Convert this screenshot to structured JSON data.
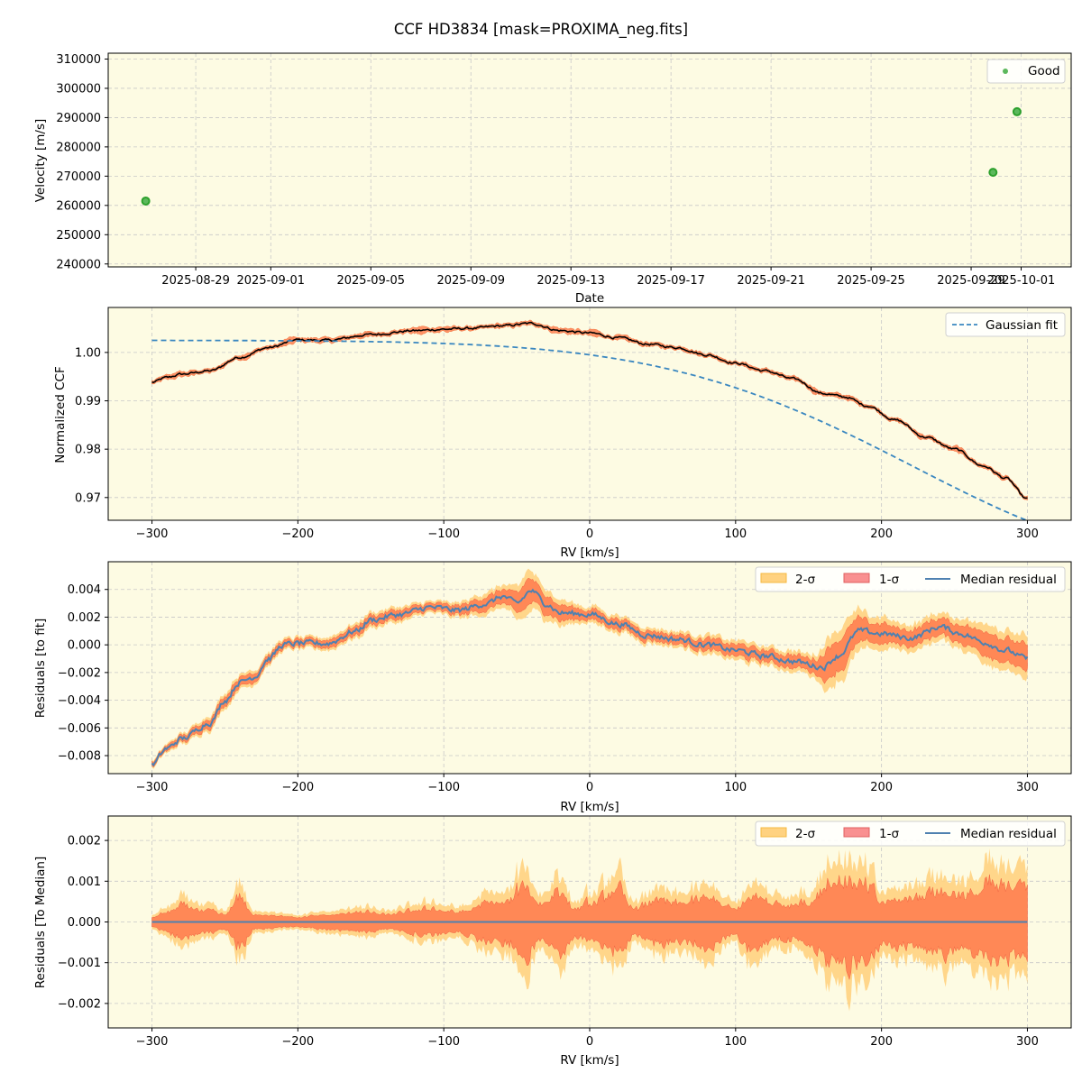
{
  "figure": {
    "title": "CCF HD3834 [mask=PROXIMA_neg.fits]",
    "background": "#ffffff",
    "axes_face": "#fdfbe3",
    "grid_color": "#c8c8c8"
  },
  "chart_data": [
    {
      "id": "velocity",
      "type": "scatter",
      "xlabel": "Date",
      "ylabel": "Velocity [m/s]",
      "x_type": "date",
      "xlim": [
        "2025-08-25T12:00",
        "2025-10-03T00:00"
      ],
      "ylim": [
        239000,
        312000
      ],
      "xticks": [
        "2025-08-29",
        "2025-09-01",
        "2025-09-05",
        "2025-09-09",
        "2025-09-13",
        "2025-09-17",
        "2025-09-21",
        "2025-09-25",
        "2025-09-29",
        "2025-10-01"
      ],
      "yticks": [
        240000,
        250000,
        260000,
        270000,
        280000,
        290000,
        300000,
        310000
      ],
      "legend": {
        "position": "top-right",
        "entries": [
          {
            "label": "Good",
            "marker": "dot",
            "color": "#5cb85c"
          }
        ]
      },
      "series": [
        {
          "name": "Good",
          "color": "#2ca02c",
          "points": [
            {
              "x": "2025-08-27T00:00",
              "y": 261500
            },
            {
              "x": "2025-09-29T21:00",
              "y": 271300
            },
            {
              "x": "2025-09-30T20:00",
              "y": 292000
            }
          ]
        }
      ]
    },
    {
      "id": "ccf",
      "type": "line",
      "xlabel": "RV [km/s]",
      "ylabel": "Normalized CCF",
      "xlim": [
        -330,
        330
      ],
      "ylim": [
        0.9653,
        1.0093
      ],
      "xticks": [
        -300,
        -200,
        -100,
        0,
        100,
        200,
        300
      ],
      "yticks": [
        0.97,
        0.98,
        0.99,
        1.0
      ],
      "ytick_labels": [
        "0.97",
        "0.98",
        "0.99",
        "1.00"
      ],
      "legend": {
        "position": "top-right",
        "entries": [
          {
            "label": "Gaussian fit",
            "style": "dashed",
            "color": "#3a87c0"
          }
        ]
      },
      "median_knots": [
        [
          -300,
          0.9938
        ],
        [
          -290,
          0.9948
        ],
        [
          -280,
          0.9955
        ],
        [
          -260,
          0.9962
        ],
        [
          -240,
          0.999
        ],
        [
          -220,
          1.001
        ],
        [
          -200,
          1.0026
        ],
        [
          -180,
          1.0025
        ],
        [
          -150,
          1.0037
        ],
        [
          -120,
          1.0045
        ],
        [
          -100,
          1.0048
        ],
        [
          -80,
          1.005
        ],
        [
          -60,
          1.0055
        ],
        [
          -40,
          1.006
        ],
        [
          -20,
          1.0045
        ],
        [
          0,
          1.004
        ],
        [
          20,
          1.003
        ],
        [
          40,
          1.0017
        ],
        [
          60,
          1.001
        ],
        [
          80,
          0.9995
        ],
        [
          100,
          0.9978
        ],
        [
          120,
          0.9962
        ],
        [
          140,
          0.9945
        ],
        [
          160,
          0.9915
        ],
        [
          175,
          0.9908
        ],
        [
          190,
          0.989
        ],
        [
          210,
          0.986
        ],
        [
          230,
          0.9825
        ],
        [
          250,
          0.98
        ],
        [
          270,
          0.9765
        ],
        [
          285,
          0.974
        ],
        [
          300,
          0.9697
        ]
      ],
      "band": {
        "label": "1-σ",
        "color": "#ff7f50"
      },
      "gaussian_fit": {
        "name": "Gaussian fit",
        "color": "#3a87c0",
        "baseline": 1.0025,
        "amplitude": -0.0433,
        "center": 393,
        "sigma": 170,
        "x_range": [
          -300,
          300
        ]
      }
    },
    {
      "id": "residuals_fit",
      "type": "area",
      "xlabel": "RV [km/s]",
      "ylabel": "Residuals [to fit]",
      "xlim": [
        -330,
        330
      ],
      "ylim": [
        -0.0093,
        0.006
      ],
      "xticks": [
        -300,
        -200,
        -100,
        0,
        100,
        200,
        300
      ],
      "yticks": [
        -0.008,
        -0.006,
        -0.004,
        -0.002,
        0.0,
        0.002,
        0.004
      ],
      "ytick_labels": [
        "−0.008",
        "−0.006",
        "−0.004",
        "−0.002",
        "0.000",
        "0.002",
        "0.004"
      ],
      "legend": {
        "position": "top-right",
        "columns": 3,
        "entries": [
          {
            "label": "2-σ",
            "color": "#ffd280"
          },
          {
            "label": "1-σ",
            "color": "#f99090"
          },
          {
            "label": "Median residual",
            "color": "#4f81b0"
          }
        ]
      },
      "median_knots": [
        [
          -300,
          -0.0087
        ],
        [
          -290,
          -0.0075
        ],
        [
          -280,
          -0.0068
        ],
        [
          -260,
          -0.0056
        ],
        [
          -250,
          -0.004
        ],
        [
          -240,
          -0.0027
        ],
        [
          -230,
          -0.0023
        ],
        [
          -220,
          -0.001
        ],
        [
          -210,
          0.0
        ],
        [
          -200,
          0.0001
        ],
        [
          -180,
          0.0001
        ],
        [
          -160,
          0.001
        ],
        [
          -150,
          0.0018
        ],
        [
          -130,
          0.0022
        ],
        [
          -110,
          0.0027
        ],
        [
          -90,
          0.0025
        ],
        [
          -70,
          0.003
        ],
        [
          -60,
          0.0035
        ],
        [
          -50,
          0.003
        ],
        [
          -40,
          0.0039
        ],
        [
          -30,
          0.003
        ],
        [
          -20,
          0.0023
        ],
        [
          0,
          0.0022
        ],
        [
          20,
          0.0015
        ],
        [
          40,
          0.0007
        ],
        [
          60,
          0.0004
        ],
        [
          80,
          0.0
        ],
        [
          100,
          -0.0004
        ],
        [
          120,
          -0.0008
        ],
        [
          140,
          -0.0012
        ],
        [
          160,
          -0.0016
        ],
        [
          170,
          -0.0008
        ],
        [
          185,
          0.001
        ],
        [
          200,
          0.0008
        ],
        [
          220,
          0.0005
        ],
        [
          240,
          0.0013
        ],
        [
          255,
          0.0008
        ],
        [
          270,
          0.0002
        ],
        [
          285,
          -0.0004
        ],
        [
          300,
          -0.001
        ]
      ],
      "sigma_knots": [
        [
          -300,
          0.0001
        ],
        [
          -250,
          0.0003
        ],
        [
          -200,
          0.0002
        ],
        [
          -150,
          0.0003
        ],
        [
          -100,
          0.0002
        ],
        [
          -60,
          0.0005
        ],
        [
          -40,
          0.0008
        ],
        [
          -20,
          0.0005
        ],
        [
          0,
          0.0003
        ],
        [
          50,
          0.0003
        ],
        [
          100,
          0.0004
        ],
        [
          150,
          0.0004
        ],
        [
          170,
          0.0012
        ],
        [
          200,
          0.0006
        ],
        [
          250,
          0.0006
        ],
        [
          280,
          0.0009
        ],
        [
          300,
          0.001
        ]
      ],
      "median_color": "#4f81b0",
      "band_colors": {
        "two_sigma": "#ffd280",
        "one_sigma": "#ff7f50"
      }
    },
    {
      "id": "residuals_median",
      "type": "area",
      "xlabel": "RV [km/s]",
      "ylabel": "Residuals [To Median]",
      "xlim": [
        -330,
        330
      ],
      "ylim": [
        -0.0026,
        0.0026
      ],
      "xticks": [
        -300,
        -200,
        -100,
        0,
        100,
        200,
        300
      ],
      "yticks": [
        -0.002,
        -0.001,
        0.0,
        0.001,
        0.002
      ],
      "ytick_labels": [
        "−0.002",
        "−0.001",
        "0.000",
        "0.001",
        "0.002"
      ],
      "legend": {
        "position": "top-right",
        "columns": 3,
        "entries": [
          {
            "label": "2-σ",
            "color": "#ffd280"
          },
          {
            "label": "1-σ",
            "color": "#f99090"
          },
          {
            "label": "Median residual",
            "color": "#4f81b0"
          }
        ]
      },
      "median_value": 0.0,
      "envelope_knots": [
        [
          -300,
          0.0001
        ],
        [
          -290,
          0.0003
        ],
        [
          -280,
          0.0005
        ],
        [
          -260,
          0.0003
        ],
        [
          -250,
          0.0002
        ],
        [
          -240,
          0.0008
        ],
        [
          -230,
          0.0002
        ],
        [
          -200,
          0.0001
        ],
        [
          -180,
          0.0002
        ],
        [
          -150,
          0.0003
        ],
        [
          -140,
          0.0002
        ],
        [
          -110,
          0.0004
        ],
        [
          -90,
          0.0003
        ],
        [
          -70,
          0.0006
        ],
        [
          -55,
          0.0007
        ],
        [
          -45,
          0.0013
        ],
        [
          -35,
          0.0006
        ],
        [
          -20,
          0.001
        ],
        [
          -10,
          0.0004
        ],
        [
          0,
          0.0006
        ],
        [
          20,
          0.001
        ],
        [
          30,
          0.0004
        ],
        [
          45,
          0.0007
        ],
        [
          60,
          0.0006
        ],
        [
          80,
          0.0008
        ],
        [
          100,
          0.0004
        ],
        [
          110,
          0.0009
        ],
        [
          130,
          0.0005
        ],
        [
          150,
          0.0006
        ],
        [
          165,
          0.0013
        ],
        [
          175,
          0.0014
        ],
        [
          190,
          0.0012
        ],
        [
          200,
          0.0007
        ],
        [
          220,
          0.0008
        ],
        [
          240,
          0.001
        ],
        [
          260,
          0.0009
        ],
        [
          275,
          0.0013
        ],
        [
          290,
          0.0011
        ],
        [
          300,
          0.0012
        ]
      ],
      "median_color": "#4f81b0",
      "band_colors": {
        "two_sigma": "#ffd280",
        "one_sigma": "#ff7f50"
      }
    }
  ]
}
